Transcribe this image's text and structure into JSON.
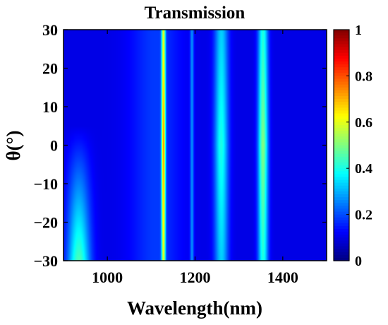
{
  "chart_data": {
    "type": "heatmap",
    "title": "Transmission",
    "xlabel": "Wavelength(nm)",
    "ylabel": "θ(°)",
    "xlim": [
      900,
      1500
    ],
    "ylim": [
      -30,
      30
    ],
    "x_ticks": [
      1000,
      1200,
      1400
    ],
    "x_tick_labels": [
      "1000",
      "1200",
      "1400"
    ],
    "y_ticks": [
      30,
      20,
      10,
      0,
      -10,
      -20,
      -30
    ],
    "y_tick_labels": [
      "30",
      "20",
      "10",
      "0",
      "−10",
      "−20",
      "−30"
    ],
    "colorbar": {
      "colormap": "jet",
      "range": [
        0,
        1
      ],
      "ticks": [
        1,
        0.8,
        0.6,
        0.4,
        0.2,
        0
      ],
      "tick_labels": [
        "1",
        "0.8",
        "0.6",
        "0.4",
        "0.2",
        "0"
      ]
    },
    "background_level": 0.1,
    "features": [
      {
        "center_nm": 935,
        "sigma_nm": 18,
        "peak_level": 0.35,
        "angle_profile": "rises toward -30"
      },
      {
        "center_nm": 1110,
        "sigma_nm": 40,
        "peak_level": 0.08,
        "angle_profile": "broad"
      },
      {
        "center_nm": 1128,
        "sigma_nm": 3.2,
        "peak_level": 0.55,
        "angle_profile": "peaks at 0"
      },
      {
        "center_nm": 1193,
        "sigma_nm": 3,
        "peak_level": 0.15,
        "angle_profile": "flat"
      },
      {
        "center_nm": 1260,
        "sigma_nm": 11,
        "peak_level": 0.3,
        "angle_profile": "peaks at 0"
      },
      {
        "center_nm": 1355,
        "sigma_nm": 8,
        "peak_level": 0.4,
        "angle_profile": "peaks at 0"
      }
    ]
  }
}
